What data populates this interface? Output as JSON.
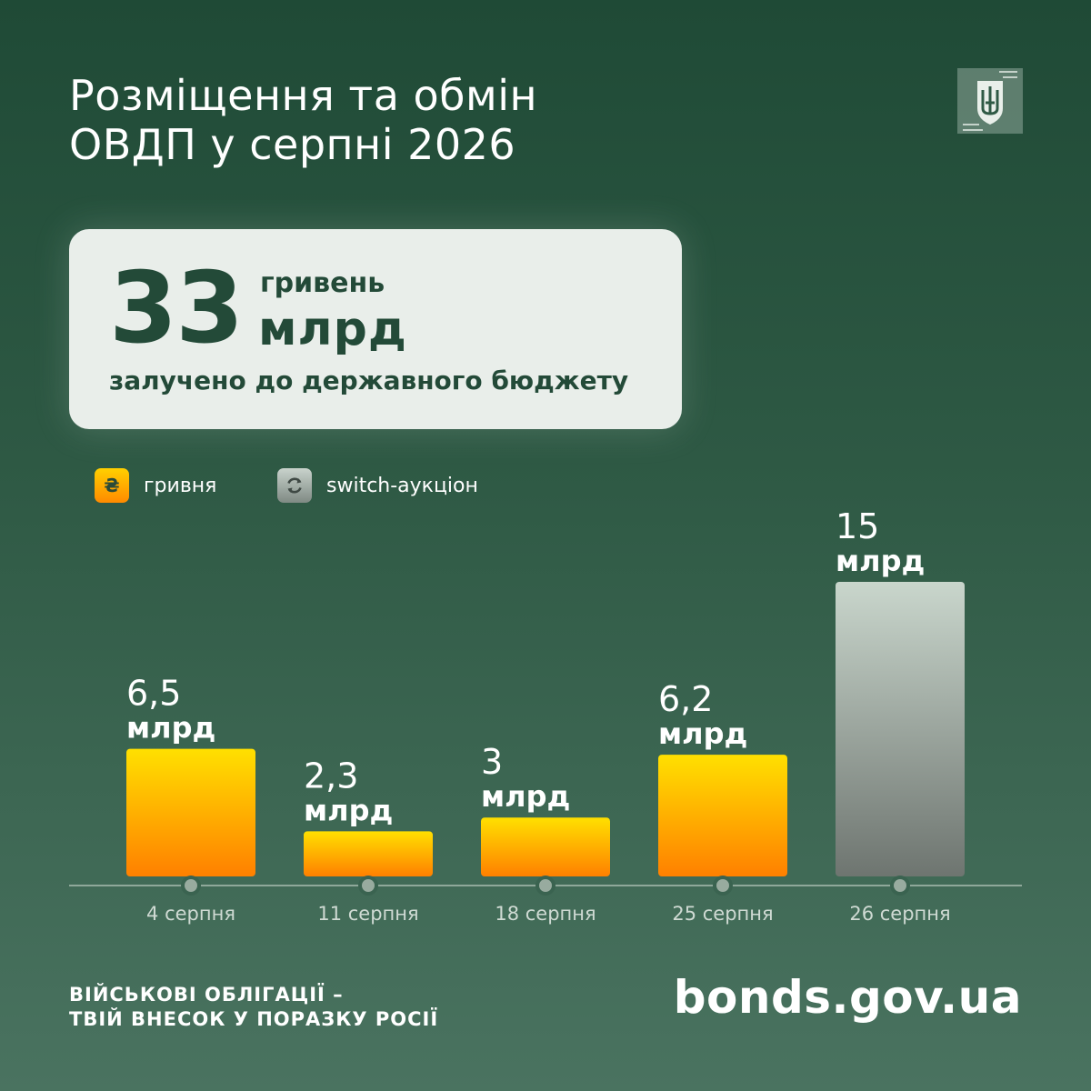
{
  "header": {
    "title_line1": "Розміщення та обмін",
    "title_line2": "ОВДП у серпні 2026",
    "emblem_icon": "tryzub-emblem-icon"
  },
  "summary": {
    "amount": "33",
    "unit_top": "гривень",
    "unit_bottom": "млрд",
    "caption": "залучено до державного бюджету"
  },
  "legend": {
    "uah_symbol": "₴",
    "uah_label": "гривня",
    "switch_icon": "refresh-icon",
    "switch_label": "switch-аукціон"
  },
  "colors": {
    "uah_top": "#ffe000",
    "uah_bottom": "#ff8000",
    "switch_top": "#c9d6cc",
    "switch_bottom": "#6e7570"
  },
  "chart_data": {
    "type": "bar",
    "categories": [
      "4 серпня",
      "11 серпня",
      "18 серпня",
      "25 серпня",
      "26 серпня"
    ],
    "values": [
      6.5,
      2.3,
      3,
      6.2,
      15
    ],
    "value_labels": [
      "6,5",
      "2,3",
      "3",
      "6,2",
      "15"
    ],
    "value_unit": "млрд",
    "bar_kind": [
      "uah",
      "uah",
      "uah",
      "uah",
      "switch"
    ],
    "title": "",
    "xlabel": "",
    "ylabel": "",
    "ylim": [
      0,
      15
    ]
  },
  "footer": {
    "slogan_line1": "ВІЙСЬКОВІ ОБЛІГАЦІЇ –",
    "slogan_line2": "ТВІЙ ВНЕСОК У ПОРАЗКУ РОСІЇ",
    "url": "bonds.gov.ua"
  }
}
